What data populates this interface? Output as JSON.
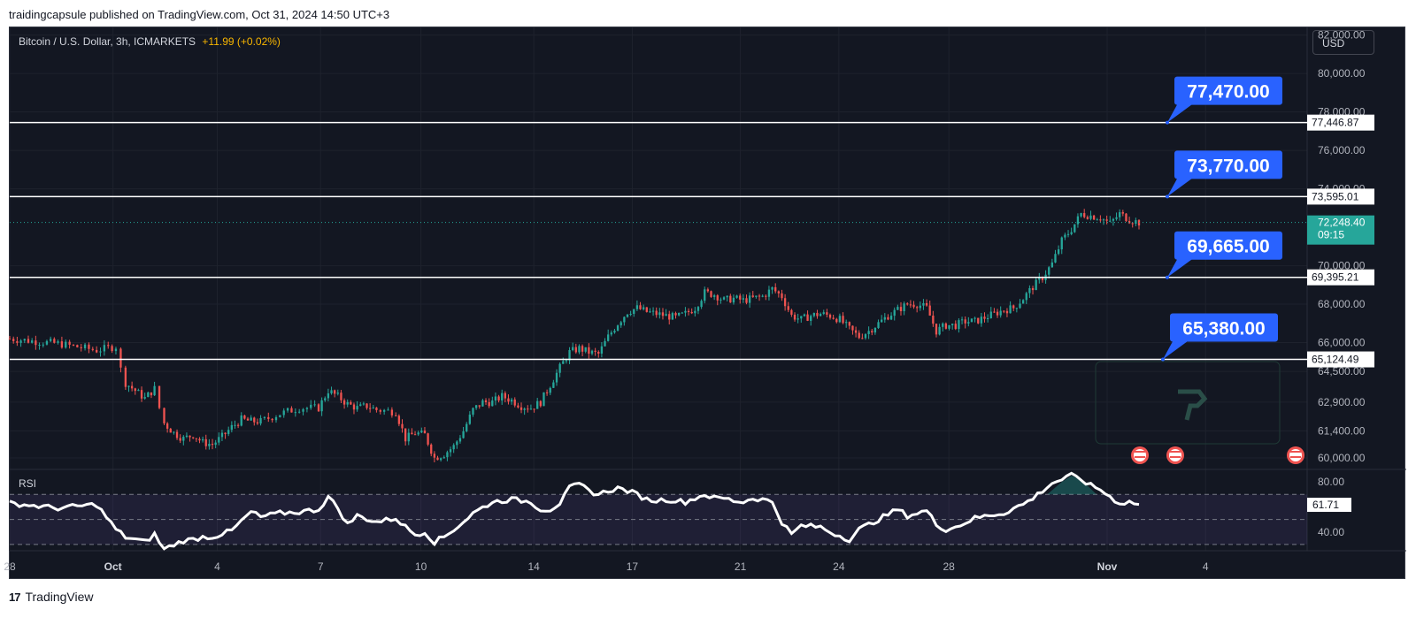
{
  "header": {
    "text": "traidingcapsule published on TradingView.com, Oct 31, 2024 14:50 UTC+3"
  },
  "symbol": {
    "title": "Bitcoin / U.S. Dollar, 3h, ICMARKETS",
    "change": "+11.99 (+0.02%)"
  },
  "currency_button": "USD",
  "footer": {
    "brand": "TradingView",
    "logo": "17"
  },
  "indicator_label": "RSI",
  "colors": {
    "up": "#26a69a",
    "down": "#ef5350",
    "bg": "#131722",
    "callout": "#2962ff",
    "level_line": "#ffffff"
  },
  "chart_data": {
    "type": "candlestick",
    "title": "",
    "xlabel": "",
    "ylabel": "",
    "ylim": [
      59400,
      82400
    ],
    "y_ticks": [
      "82,000.00",
      "80,000.00",
      "78,000.00",
      "76,000.00",
      "74,000.00",
      "70,000.00",
      "68,000.00",
      "66,000.00",
      "64,500.00",
      "62,900.00",
      "61,400.00",
      "60,000.00"
    ],
    "x_ticks": [
      "28",
      "Oct",
      "4",
      "7",
      "10",
      "14",
      "17",
      "21",
      "24",
      "28",
      "Nov",
      "4"
    ],
    "levels": [
      {
        "label": "77,470.00",
        "price_label": "77,446.87",
        "value": 77446.87
      },
      {
        "label": "73,770.00",
        "price_label": "73,595.01",
        "value": 73595.01
      },
      {
        "label": "69,665.00",
        "price_label": "69,395.21",
        "value": 69395.21
      },
      {
        "label": "65,380.00",
        "price_label": "65,124.49",
        "value": 65124.49
      }
    ],
    "current_price": {
      "price": "72,248.40",
      "countdown": "09:15",
      "value": 72248.4
    },
    "price_path": [
      [
        0,
        66200
      ],
      [
        5,
        65950
      ],
      [
        9,
        65600
      ],
      [
        11,
        65800
      ],
      [
        11.5,
        64600
      ],
      [
        12,
        63900
      ],
      [
        13,
        63500
      ],
      [
        14,
        63100
      ],
      [
        15,
        63600
      ],
      [
        15.5,
        62600
      ],
      [
        16,
        61800
      ],
      [
        17,
        61300
      ],
      [
        18,
        61000
      ],
      [
        19,
        61200
      ],
      [
        20,
        60800
      ],
      [
        21,
        60700
      ],
      [
        22,
        61100
      ],
      [
        23,
        61600
      ],
      [
        24,
        62000
      ],
      [
        25,
        61900
      ],
      [
        26,
        61900
      ],
      [
        28,
        62300
      ],
      [
        30,
        62600
      ],
      [
        32,
        62600
      ],
      [
        33,
        63500
      ],
      [
        34,
        63200
      ],
      [
        35,
        62800
      ],
      [
        36,
        62600
      ],
      [
        37,
        62700
      ],
      [
        38,
        62500
      ],
      [
        40,
        62400
      ],
      [
        41,
        61000
      ],
      [
        42,
        61300
      ],
      [
        43,
        61200
      ],
      [
        44,
        60000
      ],
      [
        45,
        60200
      ],
      [
        46,
        60600
      ],
      [
        47,
        61400
      ],
      [
        48,
        62500
      ],
      [
        49,
        62900
      ],
      [
        50,
        62900
      ],
      [
        51,
        63200
      ],
      [
        52,
        63000
      ],
      [
        53,
        62700
      ],
      [
        54,
        62600
      ],
      [
        55,
        62900
      ],
      [
        56,
        63800
      ],
      [
        57,
        64700
      ],
      [
        58,
        65500
      ],
      [
        59,
        65700
      ],
      [
        60,
        65500
      ],
      [
        61,
        65400
      ],
      [
        62,
        66300
      ],
      [
        63,
        67000
      ],
      [
        64,
        67600
      ],
      [
        65,
        67800
      ],
      [
        66,
        67600
      ],
      [
        67,
        67500
      ],
      [
        68,
        67400
      ],
      [
        69,
        67300
      ],
      [
        70,
        67500
      ],
      [
        71,
        67800
      ],
      [
        72,
        68600
      ],
      [
        73,
        68500
      ],
      [
        74,
        68200
      ],
      [
        75,
        68300
      ],
      [
        76,
        68200
      ],
      [
        77,
        68300
      ],
      [
        78,
        68400
      ],
      [
        79,
        68800
      ],
      [
        80,
        68400
      ],
      [
        81,
        67400
      ],
      [
        82,
        67200
      ],
      [
        83,
        67400
      ],
      [
        84,
        67500
      ],
      [
        85,
        67400
      ],
      [
        86,
        67200
      ],
      [
        87,
        66700
      ],
      [
        88,
        66300
      ],
      [
        89,
        66600
      ],
      [
        90,
        67000
      ],
      [
        91,
        67400
      ],
      [
        92,
        67700
      ],
      [
        93,
        68000
      ],
      [
        94,
        68000
      ],
      [
        95,
        67800
      ],
      [
        96,
        66600
      ],
      [
        97,
        66900
      ],
      [
        98,
        66900
      ],
      [
        99,
        67100
      ],
      [
        100,
        67100
      ],
      [
        101,
        67300
      ],
      [
        102,
        67500
      ],
      [
        103,
        67700
      ],
      [
        104,
        67800
      ],
      [
        105,
        68300
      ],
      [
        106,
        68900
      ],
      [
        107,
        69400
      ],
      [
        108,
        70100
      ],
      [
        109,
        71300
      ],
      [
        110,
        71900
      ],
      [
        111,
        72700
      ],
      [
        112,
        72600
      ],
      [
        113,
        72500
      ],
      [
        114,
        72200
      ],
      [
        115,
        72700
      ],
      [
        116,
        72400
      ],
      [
        117,
        72250
      ]
    ],
    "rsi": {
      "ylim": [
        25,
        90
      ],
      "tick_labels": [
        "80.00",
        "40.00"
      ],
      "overbought": 70,
      "midline": 50,
      "oversold": 30,
      "value": 61.71,
      "value_label": "61.71",
      "path": [
        [
          0,
          63
        ],
        [
          5,
          59
        ],
        [
          9,
          62
        ],
        [
          11,
          42
        ],
        [
          12,
          36
        ],
        [
          14,
          32
        ],
        [
          15,
          38
        ],
        [
          16,
          26
        ],
        [
          17,
          30
        ],
        [
          18,
          33
        ],
        [
          19,
          34
        ],
        [
          20,
          36
        ],
        [
          21,
          36
        ],
        [
          23,
          41
        ],
        [
          25,
          56
        ],
        [
          26,
          52
        ],
        [
          28,
          55
        ],
        [
          30,
          56
        ],
        [
          32,
          58
        ],
        [
          33,
          68
        ],
        [
          34,
          59
        ],
        [
          35,
          46
        ],
        [
          36,
          53
        ],
        [
          38,
          48
        ],
        [
          40,
          51
        ],
        [
          41,
          44
        ],
        [
          42,
          38
        ],
        [
          43,
          40
        ],
        [
          44,
          32
        ],
        [
          45,
          36
        ],
        [
          46,
          42
        ],
        [
          47,
          48
        ],
        [
          48,
          55
        ],
        [
          50,
          64
        ],
        [
          52,
          66
        ],
        [
          54,
          64
        ],
        [
          55,
          58
        ],
        [
          56,
          58
        ],
        [
          57,
          63
        ],
        [
          58,
          75
        ],
        [
          59,
          78
        ],
        [
          60,
          73
        ],
        [
          61,
          70
        ],
        [
          62,
          73
        ],
        [
          63,
          75
        ],
        [
          64,
          73
        ],
        [
          65,
          70
        ],
        [
          66,
          66
        ],
        [
          67,
          65
        ],
        [
          68,
          66
        ],
        [
          70,
          64
        ],
        [
          72,
          70
        ],
        [
          73,
          67
        ],
        [
          74,
          67
        ],
        [
          75,
          65
        ],
        [
          76,
          64
        ],
        [
          77,
          67
        ],
        [
          78,
          66
        ],
        [
          79,
          64
        ],
        [
          80,
          48
        ],
        [
          81,
          38
        ],
        [
          82,
          45
        ],
        [
          84,
          44
        ],
        [
          85,
          40
        ],
        [
          86,
          37
        ],
        [
          87,
          34
        ],
        [
          88,
          42
        ],
        [
          90,
          50
        ],
        [
          92,
          58
        ],
        [
          93,
          53
        ],
        [
          94,
          55
        ],
        [
          95,
          57
        ],
        [
          96,
          46
        ],
        [
          97,
          42
        ],
        [
          98,
          44
        ],
        [
          100,
          51
        ],
        [
          102,
          54
        ],
        [
          103,
          55
        ],
        [
          104,
          59
        ],
        [
          105,
          62
        ],
        [
          106,
          67
        ],
        [
          107,
          73
        ],
        [
          108,
          79
        ],
        [
          109,
          82
        ],
        [
          110,
          85
        ],
        [
          111,
          82
        ],
        [
          112,
          77
        ],
        [
          113,
          74
        ],
        [
          114,
          68
        ],
        [
          115,
          63
        ],
        [
          116,
          64
        ],
        [
          117,
          62
        ]
      ]
    }
  }
}
